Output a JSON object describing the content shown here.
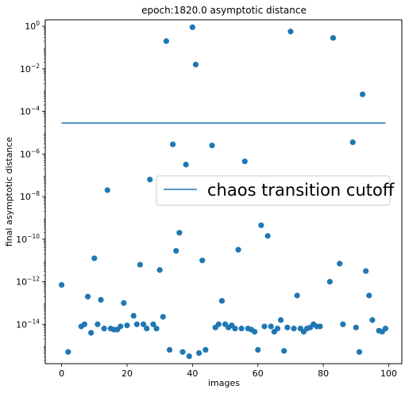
{
  "chart_data": {
    "type": "scatter",
    "title": "epoch:1820.0 asymptotic distance",
    "xlabel": "images",
    "ylabel": "final asymptotic distance",
    "xlim": [
      -5,
      104
    ],
    "ylim_exp": [
      -15.85,
      0.3
    ],
    "yscale": "log",
    "grid": false,
    "legend_position": "center-right",
    "x_ticks": [
      0,
      20,
      40,
      60,
      80,
      100
    ],
    "x_tick_labels": [
      "0",
      "20",
      "40",
      "60",
      "80",
      "100"
    ],
    "y_ticks_exp": [
      0,
      -2,
      -4,
      -6,
      -8,
      -10,
      -12,
      -14
    ],
    "point_color": "#1f77b4",
    "cutoff": {
      "label": "chaos transition cutoff",
      "value_exp": -4.55,
      "x_start": 0,
      "x_end": 99,
      "color": "#1f77b4"
    },
    "series": [
      {
        "x": [
          0,
          2,
          6,
          7,
          8,
          9,
          10,
          11,
          12,
          13,
          14,
          15,
          16,
          17,
          18,
          19,
          20,
          22,
          23,
          24,
          25,
          26,
          27,
          28,
          29,
          30,
          31,
          32,
          33,
          34,
          35,
          36,
          37,
          38,
          39,
          40,
          41,
          42,
          43,
          44,
          46,
          47,
          48,
          49,
          50,
          51,
          52,
          53,
          54,
          55,
          56,
          57,
          58,
          59,
          60,
          61,
          62,
          63,
          64,
          65,
          66,
          67,
          68,
          69,
          70,
          71,
          72,
          73,
          74,
          75,
          76,
          77,
          78,
          79,
          82,
          83,
          85,
          86,
          89,
          90,
          91,
          92,
          93,
          94,
          95,
          97,
          98,
          99
        ],
        "y_exp": [
          -12.15,
          -15.3,
          -14.1,
          -14.0,
          -12.7,
          -14.4,
          -10.9,
          -14.0,
          -12.85,
          -14.2,
          -7.7,
          -14.2,
          -14.25,
          -14.25,
          -14.1,
          -13.0,
          -14.05,
          -13.6,
          -14.0,
          -11.2,
          -14.0,
          -14.2,
          -7.2,
          -14.0,
          -14.2,
          -11.45,
          -13.65,
          -0.7,
          -15.2,
          -5.55,
          -10.55,
          -9.7,
          -15.3,
          -6.5,
          -15.5,
          -0.05,
          -1.8,
          -15.35,
          -11.0,
          -15.2,
          -5.6,
          -14.15,
          -14.0,
          -12.9,
          -14.0,
          -14.15,
          -14.05,
          -14.2,
          -10.5,
          -14.2,
          -6.35,
          -14.2,
          -14.25,
          -14.35,
          -15.2,
          -9.35,
          -14.1,
          -9.85,
          -14.1,
          -14.35,
          -14.2,
          -13.8,
          -15.25,
          -14.15,
          -0.25,
          -14.2,
          -12.65,
          -14.2,
          -14.35,
          -14.2,
          -14.15,
          -14.0,
          -14.1,
          -14.1,
          -12.0,
          -0.55,
          -11.15,
          -14.0,
          -5.45,
          -14.15,
          -15.3,
          -3.2,
          -11.5,
          -12.65,
          -13.8,
          -14.3,
          -14.35,
          -14.2
        ]
      }
    ]
  }
}
